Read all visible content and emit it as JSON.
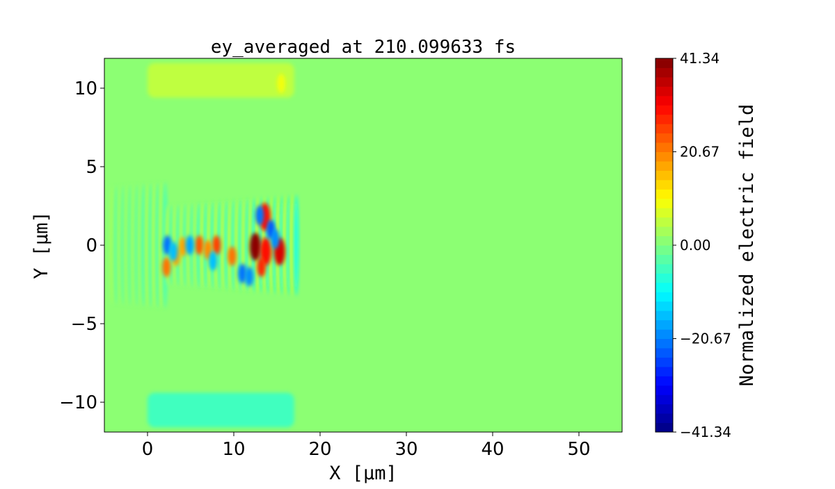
{
  "chart_data": {
    "type": "heatmap",
    "title": "ey_averaged at 210.099633 fs",
    "xlabel": "X [$\\mu m$]",
    "ylabel": "Y [$\\mu m$]",
    "xlabel_display": "X [μm]",
    "ylabel_display": "Y [μm]",
    "xlim": [
      -5,
      55
    ],
    "ylim": [
      -11.9,
      11.9
    ],
    "xticks": [
      0,
      10,
      20,
      30,
      40,
      50
    ],
    "xtick_labels": [
      "0",
      "10",
      "20",
      "30",
      "40",
      "50"
    ],
    "yticks": [
      -10,
      -5,
      0,
      5,
      10
    ],
    "ytick_labels": [
      "−10",
      "−5",
      "0",
      "5",
      "10"
    ],
    "colormap": "jet",
    "levels": 40,
    "vmin": -41.34,
    "vmax": 41.34,
    "colorbar": {
      "label": "Normalized electric field",
      "ticks": [
        41.34,
        20.67,
        0.0,
        -20.67,
        -41.34
      ],
      "tick_labels": [
        "41.34",
        "20.67",
        "0.00",
        "−20.67",
        "−41.34"
      ]
    },
    "grid": false,
    "background_value": 0,
    "bands": [
      {
        "x": [
          0,
          17
        ],
        "y": [
          9.4,
          11.6
        ],
        "value": 5
      },
      {
        "x": [
          0,
          17
        ],
        "y": [
          -11.6,
          -9.4
        ],
        "value": -5
      }
    ],
    "wave": {
      "x": [
        -4,
        17.5
      ],
      "wavelength": 0.8,
      "half_height": 2.5,
      "amplitude": [
        3,
        10
      ]
    },
    "blobs": [
      {
        "x": 15.5,
        "y": 10.3,
        "value": 10
      },
      {
        "x": 12.5,
        "y": -0.1,
        "value": 41
      },
      {
        "x": 13.7,
        "y": -0.4,
        "value": 30
      },
      {
        "x": 13.2,
        "y": -1.4,
        "value": 28
      },
      {
        "x": 15.3,
        "y": -0.4,
        "value": 34
      },
      {
        "x": 8.0,
        "y": 0.0,
        "value": 26
      },
      {
        "x": 6.0,
        "y": 0.0,
        "value": 24
      },
      {
        "x": 9.8,
        "y": -0.7,
        "value": 22
      },
      {
        "x": 7.0,
        "y": -0.3,
        "value": 20
      },
      {
        "x": 4.1,
        "y": -0.1,
        "value": 18
      },
      {
        "x": 2.2,
        "y": -1.4,
        "value": 22
      },
      {
        "x": 3.3,
        "y": -0.7,
        "value": 18
      },
      {
        "x": 13.6,
        "y": 1.8,
        "value": 30
      },
      {
        "x": 2.3,
        "y": 0.0,
        "value": -22
      },
      {
        "x": 4.9,
        "y": 0.0,
        "value": -18
      },
      {
        "x": 3.0,
        "y": -0.4,
        "value": -16
      },
      {
        "x": 7.6,
        "y": -1.0,
        "value": -15
      },
      {
        "x": 11.0,
        "y": -1.8,
        "value": -22
      },
      {
        "x": 11.8,
        "y": -2.0,
        "value": -20
      },
      {
        "x": 14.3,
        "y": 1.0,
        "value": -24
      },
      {
        "x": 14.8,
        "y": 0.4,
        "value": -20
      },
      {
        "x": 13.0,
        "y": 1.9,
        "value": -22
      }
    ]
  }
}
